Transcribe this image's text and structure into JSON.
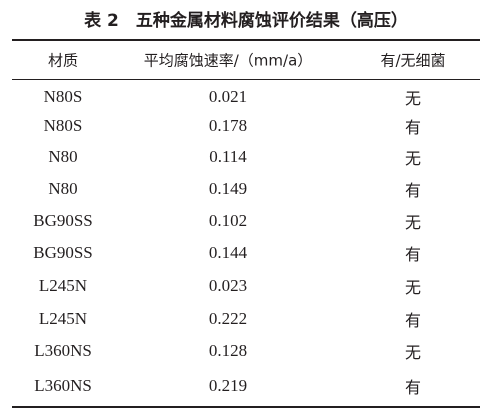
{
  "title": "表 2　五种金属材料腐蚀评价结果（高压）",
  "table": {
    "header": [
      "材质",
      "平均腐蚀速率/（mm/a）",
      "有/无细菌"
    ],
    "rows": [
      [
        "N80S",
        "0.021",
        "无"
      ],
      [
        "N80S",
        "0.178",
        "有"
      ],
      [
        "N80",
        "0.114",
        "无"
      ],
      [
        "N80",
        "0.149",
        "有"
      ],
      [
        "BG90SS",
        "0.102",
        "无"
      ],
      [
        "BG90SS",
        "0.144",
        "有"
      ],
      [
        "L245N",
        "0.023",
        "无"
      ],
      [
        "L245N",
        "0.222",
        "有"
      ],
      [
        "L360NS",
        "0.128",
        "无"
      ],
      [
        "L360NS",
        "0.219",
        "有"
      ]
    ]
  }
}
